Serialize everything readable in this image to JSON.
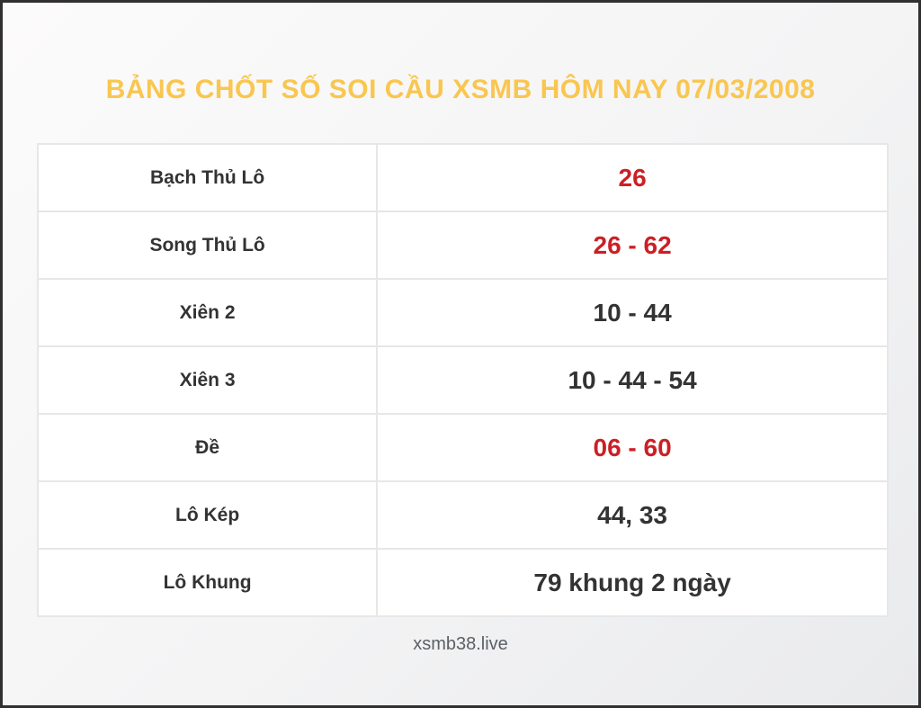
{
  "title": "BẢNG CHỐT SỐ SOI CẦU XSMB HÔM NAY 07/03/2008",
  "footer": "xsmb38.live",
  "colors": {
    "title": "#f9c64f",
    "highlight": "#cb2026",
    "text": "#333333",
    "footer": "#5c6065",
    "border": "#e7e7e7",
    "frame": "#303030",
    "bg-start": "#fcfbfb",
    "bg-end": "#e9eaec"
  },
  "table": {
    "rows": [
      {
        "label": "Bạch Thủ Lô",
        "value": "26",
        "highlight": true
      },
      {
        "label": "Song Thủ Lô",
        "value": "26 - 62",
        "highlight": true
      },
      {
        "label": "Xiên 2",
        "value": "10 - 44",
        "highlight": false
      },
      {
        "label": "Xiên 3",
        "value": "10 - 44 - 54",
        "highlight": false
      },
      {
        "label": "Đề",
        "value": "06 - 60",
        "highlight": true
      },
      {
        "label": "Lô Kép",
        "value": "44, 33",
        "highlight": false
      },
      {
        "label": "Lô Khung",
        "value": "79 khung 2 ngày",
        "highlight": false
      }
    ]
  }
}
